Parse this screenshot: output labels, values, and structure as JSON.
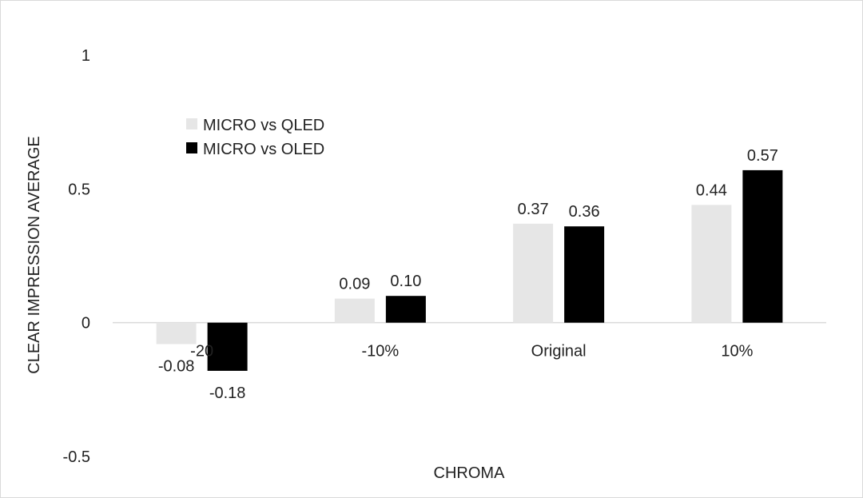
{
  "chart_data": {
    "type": "bar",
    "title": "",
    "xlabel": "CHROMA",
    "ylabel": "CLEAR IMPRESSION  AVERAGE",
    "categories": [
      "-20",
      "-10%",
      "Original",
      "10%"
    ],
    "ylim": [
      -0.5,
      1
    ],
    "yticks": [
      -0.5,
      0,
      0.5,
      1
    ],
    "ytick_labels": [
      "-0.5",
      "0",
      "0.5",
      "1"
    ],
    "series": [
      {
        "name": "MICRO vs QLED",
        "color": "#e6e6e6",
        "values": [
          -0.08,
          0.09,
          0.37,
          0.44
        ],
        "labels": [
          "-0.08",
          "0.09",
          "0.37",
          "0.44"
        ]
      },
      {
        "name": "MICRO vs OLED",
        "color": "#000000",
        "values": [
          -0.18,
          0.1,
          0.36,
          0.57
        ],
        "labels": [
          "-0.18",
          "0.10",
          "0.36",
          "0.57"
        ]
      }
    ],
    "grid": false,
    "legend": "top-left"
  }
}
